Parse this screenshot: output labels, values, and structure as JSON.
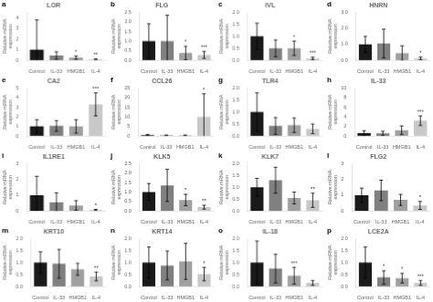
{
  "chart_data": [
    {
      "type": "bar",
      "title": "LOR",
      "panel_label": "a",
      "ylabel": "Relative mRNA expression",
      "categories": [
        "Control",
        "IL-33",
        "HMGB1",
        "IL-4"
      ],
      "values": [
        1.0,
        0.45,
        0.25,
        0.08
      ],
      "errors": [
        2.8,
        0.35,
        0.15,
        0.06
      ],
      "annotations": [
        {
          "x": "HMGB1",
          "text": "*"
        },
        {
          "x": "IL-4",
          "text": "**"
        }
      ],
      "colors": [
        "#1a1a1a",
        "#808080",
        "#a0a0a0",
        "#c8c8c8"
      ],
      "ylim": [
        0,
        4.5
      ],
      "yticks": [
        0,
        1,
        2,
        3,
        4
      ],
      "grid": false
    },
    {
      "type": "bar",
      "title": "FLG",
      "panel_label": "b",
      "ylabel": "Relative mRNA expression",
      "categories": [
        "Control",
        "IL-33",
        "HMGB1",
        "IL-4"
      ],
      "values": [
        1.0,
        1.0,
        0.38,
        0.28
      ],
      "errors": [
        0.9,
        1.35,
        0.35,
        0.18
      ],
      "annotations": [
        {
          "x": "HMGB1",
          "text": "*"
        },
        {
          "x": "IL-4",
          "text": "***"
        }
      ],
      "colors": [
        "#1a1a1a",
        "#808080",
        "#a0a0a0",
        "#c8c8c8"
      ],
      "ylim": [
        0,
        2.5
      ],
      "yticks": [
        {
          "value": 0,
          "label": "0.0"
        },
        0.5,
        {
          "value": 1,
          "label": "1.0"
        },
        1.5,
        {
          "value": 2,
          "label": "2.0"
        },
        2.5
      ],
      "grid": false
    },
    {
      "type": "bar",
      "title": "IVL",
      "panel_label": "c",
      "ylabel": "Relative mRNA expression",
      "categories": [
        "Control",
        "IL-33",
        "HMGB1",
        "IL-4"
      ],
      "values": [
        1.0,
        0.5,
        0.5,
        0.08
      ],
      "errors": [
        0.55,
        0.35,
        0.3,
        0.05
      ],
      "annotations": [
        {
          "x": "HMGB1",
          "text": "*"
        },
        {
          "x": "IL-4",
          "text": "***"
        }
      ],
      "colors": [
        "#1a1a1a",
        "#808080",
        "#a0a0a0",
        "#c8c8c8"
      ],
      "ylim": [
        0,
        2.0
      ],
      "yticks": [
        {
          "value": 0,
          "label": "0.0"
        },
        0.5,
        {
          "value": 1,
          "label": "1.0"
        },
        1.5,
        {
          "value": 2,
          "label": "2.0"
        }
      ],
      "grid": false
    },
    {
      "type": "bar",
      "title": "HNRN",
      "panel_label": "d",
      "ylabel": "Relative mRNA expression",
      "categories": [
        "Control",
        "IL-33",
        "HMGB1",
        "IL-4"
      ],
      "values": [
        1.0,
        1.05,
        0.45,
        0.12
      ],
      "errors": [
        0.5,
        0.9,
        0.45,
        0.08
      ],
      "annotations": [
        {
          "x": "IL-4",
          "text": "*"
        }
      ],
      "colors": [
        "#1a1a1a",
        "#808080",
        "#a0a0a0",
        "#c8c8c8"
      ],
      "ylim": [
        0,
        3.0
      ],
      "yticks": [
        {
          "value": 0,
          "label": "0.0"
        },
        {
          "value": 1,
          "label": "1.0"
        },
        {
          "value": 2,
          "label": "2.0"
        },
        {
          "value": 3,
          "label": "3.0"
        }
      ],
      "grid": false
    },
    {
      "type": "bar",
      "title": "CA2",
      "panel_label": "e",
      "ylabel": "Relative mRNA expression",
      "categories": [
        "Control",
        "IL-33",
        "HMGB1",
        "IL-4"
      ],
      "values": [
        1.0,
        1.05,
        1.0,
        3.3
      ],
      "errors": [
        0.7,
        0.55,
        0.7,
        1.2
      ],
      "annotations": [
        {
          "x": "IL-4",
          "text": "***"
        }
      ],
      "colors": [
        "#1a1a1a",
        "#808080",
        "#a0a0a0",
        "#c8c8c8"
      ],
      "ylim": [
        0,
        5.0
      ],
      "yticks": [
        0,
        1,
        2,
        3,
        4,
        5
      ],
      "grid": false
    },
    {
      "type": "bar",
      "title": "CCL26",
      "panel_label": "f",
      "ylabel": "Relative mRNA expression",
      "categories": [
        "Control",
        "IL-33",
        "HMGB1",
        "IL-4"
      ],
      "values": [
        0.5,
        0.3,
        0.3,
        10.0
      ],
      "errors": [
        0.3,
        0.2,
        0.2,
        12.0
      ],
      "annotations": [
        {
          "x": "IL-4",
          "text": "*"
        }
      ],
      "colors": [
        "#1a1a1a",
        "#808080",
        "#a0a0a0",
        "#c8c8c8"
      ],
      "ylim": [
        0,
        25
      ],
      "yticks": [
        0,
        5,
        10,
        15,
        20,
        25
      ],
      "grid": false
    },
    {
      "type": "bar",
      "title": "TLR4",
      "panel_label": "g",
      "ylabel": "Relative mRNA expression",
      "categories": [
        "Control",
        "IL-33",
        "HMGB1",
        "IL-4"
      ],
      "values": [
        1.0,
        0.42,
        0.45,
        0.3
      ],
      "errors": [
        0.8,
        0.35,
        0.3,
        0.2
      ],
      "colors": [
        "#1a1a1a",
        "#808080",
        "#a0a0a0",
        "#c8c8c8"
      ],
      "ylim": [
        0,
        2.0
      ],
      "yticks": [
        {
          "value": 0,
          "label": "0.0"
        },
        0.5,
        {
          "value": 1,
          "label": "1.0"
        },
        1.5,
        {
          "value": 2,
          "label": "2.0"
        }
      ],
      "grid": false
    },
    {
      "type": "bar",
      "title": "IL-33",
      "panel_label": "h",
      "ylabel": "Relative mRNA expression",
      "categories": [
        "Control",
        "IL-33",
        "HMGB1",
        "IL-4"
      ],
      "values": [
        0.6,
        0.55,
        1.2,
        3.2
      ],
      "errors": [
        0.5,
        0.45,
        0.9,
        1.0
      ],
      "annotations": [
        {
          "x": "IL-4",
          "text": "***"
        }
      ],
      "colors": [
        "#1a1a1a",
        "#808080",
        "#a0a0a0",
        "#c8c8c8"
      ],
      "ylim": [
        0,
        10
      ],
      "yticks": [
        0,
        2,
        4,
        6,
        8,
        10
      ],
      "grid": false
    },
    {
      "type": "bar",
      "title": "IL1RE1",
      "panel_label": "i",
      "ylabel": "Relative mRNA expression",
      "categories": [
        "Control",
        "IL-33",
        "HMGB1",
        "IL-4"
      ],
      "values": [
        1.0,
        0.55,
        0.35,
        0.06
      ],
      "errors": [
        1.2,
        0.6,
        0.3,
        0.04
      ],
      "annotations": [
        {
          "x": "IL-4",
          "text": "*"
        }
      ],
      "colors": [
        "#1a1a1a",
        "#808080",
        "#a0a0a0",
        "#c8c8c8"
      ],
      "ylim": [
        0,
        3.0
      ],
      "yticks": [
        0,
        1,
        2,
        3
      ],
      "grid": false
    },
    {
      "type": "bar",
      "title": "KLK5",
      "panel_label": "j",
      "ylabel": "Relative mRNA expression",
      "categories": [
        "Control",
        "IL-33",
        "HMGB1",
        "IL-4"
      ],
      "values": [
        1.0,
        1.35,
        0.58,
        0.2
      ],
      "errors": [
        0.45,
        0.85,
        0.3,
        0.1
      ],
      "annotations": [
        {
          "x": "HMGB1",
          "text": "*"
        },
        {
          "x": "IL-4",
          "text": "**"
        }
      ],
      "colors": [
        "#1a1a1a",
        "#808080",
        "#a0a0a0",
        "#c8c8c8"
      ],
      "ylim": [
        0,
        2.5
      ],
      "yticks": [
        {
          "value": 0,
          "label": "0.0"
        },
        0.5,
        {
          "value": 1,
          "label": "1.0"
        },
        1.5,
        {
          "value": 2,
          "label": "2.0"
        },
        2.5
      ],
      "grid": false
    },
    {
      "type": "bar",
      "title": "KLK7",
      "panel_label": "k",
      "ylabel": "Relative mRNA expression",
      "categories": [
        "Control",
        "IL-33",
        "HMGB1",
        "IL-4"
      ],
      "values": [
        1.0,
        1.3,
        0.55,
        0.45
      ],
      "errors": [
        0.38,
        0.55,
        0.25,
        0.3
      ],
      "annotations": [
        {
          "x": "IL-4",
          "text": "**"
        }
      ],
      "colors": [
        "#1a1a1a",
        "#808080",
        "#a0a0a0",
        "#c8c8c8"
      ],
      "ylim": [
        0,
        2.0
      ],
      "yticks": [
        {
          "value": 0,
          "label": "0.0"
        },
        0.5,
        {
          "value": 1,
          "label": "1.0"
        },
        1.5,
        {
          "value": 2,
          "label": "2.0"
        }
      ],
      "grid": false
    },
    {
      "type": "bar",
      "title": "FLG2",
      "panel_label": "l",
      "ylabel": "Relative mRNA expression",
      "categories": [
        "Control",
        "IL-33",
        "HMGB1",
        "IL-4"
      ],
      "values": [
        1.0,
        1.3,
        0.7,
        0.35
      ],
      "errors": [
        0.45,
        0.65,
        0.35,
        0.25
      ],
      "annotations": [
        {
          "x": "IL-4",
          "text": "*"
        }
      ],
      "colors": [
        "#1a1a1a",
        "#808080",
        "#a0a0a0",
        "#c8c8c8"
      ],
      "ylim": [
        0,
        3.0
      ],
      "yticks": [
        0,
        1,
        2,
        3
      ],
      "grid": false
    },
    {
      "type": "bar",
      "title": "KRT10",
      "panel_label": "m",
      "ylabel": "Relative mRNA expression",
      "categories": [
        "Control",
        "IL-33",
        "HMGB1",
        "IL-4"
      ],
      "values": [
        1.0,
        0.95,
        0.72,
        0.42
      ],
      "errors": [
        0.45,
        0.6,
        0.25,
        0.18
      ],
      "annotations": [
        {
          "x": "IL-4",
          "text": "**"
        }
      ],
      "colors": [
        "#1a1a1a",
        "#808080",
        "#a0a0a0",
        "#c8c8c8"
      ],
      "ylim": [
        0,
        2.0
      ],
      "yticks": [
        {
          "value": 0,
          "label": "0.0"
        },
        0.5,
        {
          "value": 1,
          "label": "1.0"
        },
        1.5,
        {
          "value": 2,
          "label": "2.0"
        }
      ],
      "grid": false
    },
    {
      "type": "bar",
      "title": "KRT14",
      "panel_label": "n",
      "ylabel": "Relative mRNA expression",
      "categories": [
        "Control",
        "IL-33",
        "HMGB1",
        "IL-4"
      ],
      "values": [
        1.0,
        0.88,
        1.05,
        0.52
      ],
      "errors": [
        0.65,
        0.6,
        0.75,
        0.28
      ],
      "annotations": [
        {
          "x": "IL-4",
          "text": "*"
        }
      ],
      "colors": [
        "#1a1a1a",
        "#808080",
        "#a0a0a0",
        "#c8c8c8"
      ],
      "ylim": [
        0,
        2.0
      ],
      "yticks": [
        {
          "value": 0,
          "label": "0.0"
        },
        0.5,
        {
          "value": 1,
          "label": "1.0"
        },
        1.5,
        {
          "value": 2,
          "label": "2.0"
        }
      ],
      "grid": false
    },
    {
      "type": "bar",
      "title": "IL-18",
      "panel_label": "o",
      "ylabel": "Relative mRNA expression",
      "categories": [
        "Control",
        "IL-33",
        "HMGB1",
        "IL-4"
      ],
      "values": [
        1.0,
        0.75,
        0.45,
        0.15
      ],
      "errors": [
        0.9,
        0.6,
        0.35,
        0.1
      ],
      "annotations": [
        {
          "x": "HMGB1",
          "text": "***"
        }
      ],
      "colors": [
        "#1a1a1a",
        "#808080",
        "#a0a0a0",
        "#c8c8c8"
      ],
      "ylim": [
        0,
        2.0
      ],
      "yticks": [
        {
          "value": 0,
          "label": "0.0"
        },
        0.5,
        {
          "value": 1,
          "label": "1.0"
        },
        1.5,
        {
          "value": 2,
          "label": "2.0"
        }
      ],
      "grid": false
    },
    {
      "type": "bar",
      "title": "LCE2A",
      "panel_label": "p",
      "ylabel": "Relative mRNA expression",
      "categories": [
        "Control",
        "IL-33",
        "HMGB1",
        "IL-4"
      ],
      "values": [
        1.0,
        0.38,
        0.35,
        0.15
      ],
      "errors": [
        0.65,
        0.28,
        0.2,
        0.1
      ],
      "annotations": [
        {
          "x": "IL-33",
          "text": "*"
        },
        {
          "x": "HMGB1",
          "text": "*"
        },
        {
          "x": "IL-4",
          "text": "***"
        }
      ],
      "colors": [
        "#1a1a1a",
        "#808080",
        "#a0a0a0",
        "#c8c8c8"
      ],
      "ylim": [
        0,
        2.0
      ],
      "yticks": [
        {
          "value": 0,
          "label": "0.0"
        },
        0.5,
        {
          "value": 1,
          "label": "1.0"
        },
        1.5,
        {
          "value": 2,
          "label": "2.0"
        }
      ],
      "grid": false
    }
  ]
}
